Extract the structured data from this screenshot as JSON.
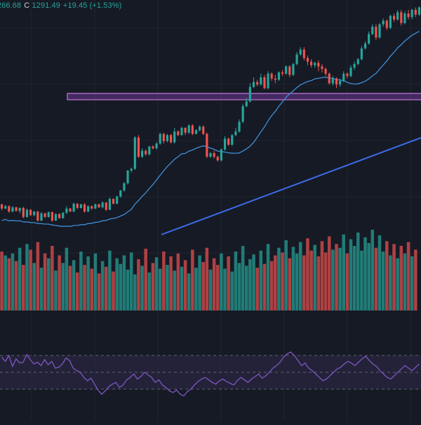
{
  "header": {
    "open_partial": "266.68",
    "close_key": "C",
    "close_value": "1291.49",
    "change": "+19.45 (+1.53%)"
  },
  "colors": {
    "background": "#161a25",
    "grid": "#1f2430",
    "up": "#26a69a",
    "down": "#ef5350",
    "ma": "#3f8fd6",
    "trendline": "#3d6be8",
    "zone_fill": "#7b3fa8",
    "zone_border": "#c678dd",
    "rsi_line": "#7e57c2",
    "rsi_band": "#2a2540",
    "rsi_levels": "#5d6270"
  },
  "chart_data": [
    {
      "type": "candlestick",
      "panel": "price",
      "candles": [
        [
          69,
          62,
          70,
          59
        ],
        [
          62,
          66,
          68,
          61
        ],
        [
          66,
          57,
          67,
          55
        ],
        [
          57,
          64,
          66,
          56
        ],
        [
          64,
          58,
          65,
          57
        ],
        [
          58,
          63,
          64,
          54
        ],
        [
          63,
          48,
          65,
          46
        ],
        [
          48,
          60,
          62,
          47
        ],
        [
          60,
          51,
          61,
          50
        ],
        [
          51,
          57,
          58,
          49
        ],
        [
          57,
          42,
          58,
          40
        ],
        [
          42,
          54,
          56,
          41
        ],
        [
          54,
          48,
          55,
          46
        ],
        [
          48,
          56,
          57,
          47
        ],
        [
          56,
          42,
          57,
          40
        ],
        [
          42,
          53,
          54,
          41
        ],
        [
          53,
          46,
          54,
          45
        ],
        [
          46,
          55,
          56,
          45
        ],
        [
          55,
          62,
          66,
          53
        ],
        [
          62,
          57,
          63,
          56
        ],
        [
          57,
          70,
          72,
          56
        ],
        [
          70,
          63,
          71,
          61
        ],
        [
          63,
          69,
          70,
          62
        ],
        [
          69,
          57,
          71,
          55
        ],
        [
          57,
          66,
          67,
          56
        ],
        [
          66,
          62,
          67,
          60
        ],
        [
          62,
          69,
          70,
          61
        ],
        [
          69,
          64,
          70,
          63
        ],
        [
          64,
          72,
          74,
          62
        ],
        [
          72,
          60,
          73,
          58
        ],
        [
          60,
          78,
          80,
          59
        ],
        [
          78,
          70,
          79,
          69
        ],
        [
          70,
          82,
          83,
          69
        ],
        [
          82,
          92,
          93,
          80
        ],
        [
          92,
          104,
          106,
          90
        ],
        [
          104,
          125,
          126,
          102
        ],
        [
          125,
          128,
          130,
          122
        ],
        [
          128,
          180,
          182,
          126
        ],
        [
          180,
          148,
          184,
          146
        ],
        [
          148,
          158,
          162,
          146
        ],
        [
          158,
          152,
          160,
          150
        ],
        [
          152,
          165,
          166,
          150
        ],
        [
          165,
          162,
          167,
          160
        ],
        [
          162,
          170,
          172,
          160
        ],
        [
          170,
          186,
          188,
          168
        ],
        [
          186,
          174,
          188,
          170
        ],
        [
          174,
          184,
          186,
          172
        ],
        [
          184,
          172,
          186,
          170
        ],
        [
          172,
          190,
          196,
          170
        ],
        [
          190,
          184,
          192,
          182
        ],
        [
          184,
          196,
          198,
          183
        ],
        [
          196,
          188,
          197,
          184
        ],
        [
          188,
          200,
          202,
          186
        ],
        [
          200,
          186,
          202,
          184
        ],
        [
          186,
          192,
          194,
          185
        ],
        [
          192,
          198,
          200,
          190
        ],
        [
          198,
          186,
          200,
          184
        ],
        [
          186,
          148,
          188,
          146
        ],
        [
          148,
          154,
          156,
          146
        ],
        [
          154,
          148,
          158,
          145
        ],
        [
          148,
          142,
          150,
          140
        ],
        [
          142,
          160,
          162,
          140
        ],
        [
          160,
          178,
          182,
          158
        ],
        [
          178,
          168,
          180,
          166
        ],
        [
          168,
          184,
          186,
          166
        ],
        [
          184,
          190,
          196,
          182
        ],
        [
          190,
          206,
          210,
          188
        ],
        [
          206,
          232,
          236,
          204
        ],
        [
          232,
          240,
          246,
          230
        ],
        [
          240,
          264,
          270,
          238
        ],
        [
          264,
          272,
          280,
          262
        ],
        [
          272,
          268,
          276,
          265
        ],
        [
          268,
          280,
          286,
          266
        ],
        [
          280,
          262,
          284,
          260
        ],
        [
          262,
          286,
          290,
          260
        ],
        [
          286,
          278,
          288,
          274
        ],
        [
          278,
          276,
          284,
          270
        ],
        [
          276,
          288,
          290,
          274
        ],
        [
          288,
          286,
          292,
          282
        ],
        [
          286,
          298,
          300,
          284
        ],
        [
          298,
          284,
          300,
          280
        ],
        [
          284,
          302,
          304,
          282
        ],
        [
          302,
          318,
          322,
          300
        ],
        [
          318,
          326,
          330,
          316
        ],
        [
          326,
          312,
          330,
          308
        ],
        [
          312,
          306,
          316,
          300
        ],
        [
          306,
          300,
          310,
          296
        ],
        [
          300,
          304,
          306,
          296
        ],
        [
          304,
          298,
          308,
          290
        ],
        [
          298,
          294,
          302,
          288
        ],
        [
          294,
          286,
          296,
          282
        ],
        [
          286,
          270,
          288,
          268
        ],
        [
          270,
          278,
          282,
          266
        ],
        [
          278,
          268,
          280,
          262
        ],
        [
          268,
          274,
          278,
          264
        ],
        [
          274,
          286,
          290,
          272
        ],
        [
          286,
          282,
          288,
          278
        ],
        [
          282,
          296,
          300,
          280
        ],
        [
          296,
          302,
          306,
          292
        ],
        [
          302,
          310,
          312,
          300
        ],
        [
          310,
          328,
          332,
          308
        ],
        [
          328,
          336,
          340,
          326
        ],
        [
          336,
          352,
          356,
          334
        ],
        [
          352,
          364,
          368,
          350
        ],
        [
          364,
          346,
          368,
          342
        ],
        [
          346,
          368,
          370,
          344
        ],
        [
          368,
          374,
          378,
          364
        ],
        [
          374,
          362,
          376,
          358
        ],
        [
          362,
          382,
          384,
          360
        ],
        [
          382,
          376,
          386,
          372
        ],
        [
          376,
          388,
          392,
          374
        ],
        [
          388,
          370,
          392,
          366
        ],
        [
          370,
          386,
          390,
          368
        ],
        [
          386,
          380,
          392,
          376
        ],
        [
          380,
          392,
          394,
          376
        ],
        [
          392,
          384,
          396,
          380
        ],
        [
          384,
          396,
          398,
          382
        ]
      ],
      "moving_average": true,
      "horizontal_zone": true,
      "trendline": true
    },
    {
      "type": "bar",
      "panel": "volume",
      "values": [
        62,
        58,
        55,
        60,
        52,
        66,
        48,
        70,
        64,
        50,
        72,
        45,
        60,
        55,
        68,
        42,
        58,
        50,
        66,
        47,
        53,
        40,
        62,
        48,
        57,
        44,
        60,
        39,
        52,
        46,
        63,
        41,
        55,
        49,
        58,
        43,
        61,
        38,
        54,
        47,
        65,
        40,
        50,
        56,
        44,
        62,
        48,
        57,
        42,
        60,
        46,
        53,
        39,
        64,
        45,
        58,
        51,
        66,
        43,
        55,
        48,
        60,
        44,
        57,
        41,
        62,
        50,
        68,
        47,
        54,
        59,
        45,
        63,
        49,
        70,
        52,
        58,
        66,
        61,
        74,
        55,
        67,
        60,
        72,
        58,
        76,
        63,
        69,
        57,
        73,
        61,
        78,
        64,
        70,
        66,
        80,
        60,
        75,
        68,
        82,
        63,
        77,
        71,
        85,
        66,
        79,
        62,
        73,
        58,
        70,
        55,
        68,
        60,
        72,
        57,
        64
      ]
    },
    {
      "type": "line",
      "panel": "rsi",
      "levels": [
        70,
        50,
        30
      ],
      "values": [
        68,
        63,
        70,
        57,
        66,
        61,
        62,
        71,
        65,
        60,
        62,
        58,
        65,
        59,
        63,
        55,
        56,
        60,
        67,
        64,
        55,
        52,
        50,
        44,
        40,
        43,
        36,
        29,
        24,
        28,
        33,
        36,
        38,
        32,
        35,
        41,
        44,
        48,
        42,
        45,
        50,
        47,
        44,
        38,
        41,
        35,
        32,
        28,
        26,
        29,
        24,
        22,
        27,
        30,
        35,
        39,
        42,
        44,
        41,
        38,
        36,
        40,
        42,
        39,
        37,
        35,
        40,
        44,
        41,
        38,
        42,
        45,
        48,
        43,
        46,
        50,
        55,
        58,
        62,
        68,
        72,
        74,
        70,
        64,
        58,
        61,
        55,
        52,
        48,
        44,
        40,
        42,
        46,
        50,
        54,
        56,
        60,
        63,
        61,
        58,
        62,
        66,
        69,
        64,
        60,
        57,
        52,
        48,
        44,
        42,
        46,
        50,
        54,
        58,
        55,
        52,
        56,
        60
      ]
    }
  ]
}
